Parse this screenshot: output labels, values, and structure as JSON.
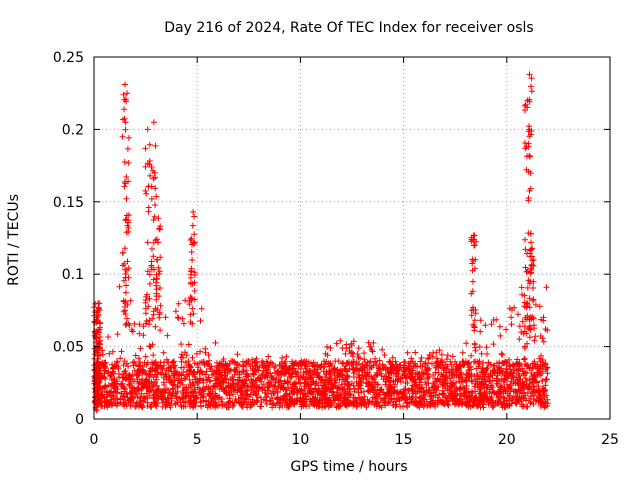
{
  "chart_data": {
    "type": "scatter",
    "title": "Day 216 of 2024, Rate Of TEC Index for receiver osls",
    "xlabel": "GPS time / hours",
    "ylabel": "ROTI / TECUs",
    "xlim": [
      0,
      25
    ],
    "ylim": [
      0,
      0.25
    ],
    "xticks": [
      0,
      5,
      10,
      15,
      20,
      25
    ],
    "xtick_labels": [
      "0",
      "5",
      "10",
      "15",
      "20",
      "25"
    ],
    "yticks": [
      0,
      0.05,
      0.1,
      0.15,
      0.2,
      0.25
    ],
    "ytick_labels": [
      "0",
      "0.05",
      "0.1",
      "0.15",
      "0.2",
      "0.25"
    ],
    "grid": true,
    "marker": "+",
    "color": "#ff0000",
    "x_range_of_data": [
      0,
      22
    ],
    "peaks": [
      {
        "x": 1.5,
        "y": 0.231
      },
      {
        "x": 1.6,
        "y": 0.225
      },
      {
        "x": 2.6,
        "y": 0.2
      },
      {
        "x": 2.9,
        "y": 0.205
      },
      {
        "x": 4.8,
        "y": 0.143
      },
      {
        "x": 18.4,
        "y": 0.127
      },
      {
        "x": 21.1,
        "y": 0.238
      },
      {
        "x": 21.0,
        "y": 0.22
      }
    ]
  }
}
